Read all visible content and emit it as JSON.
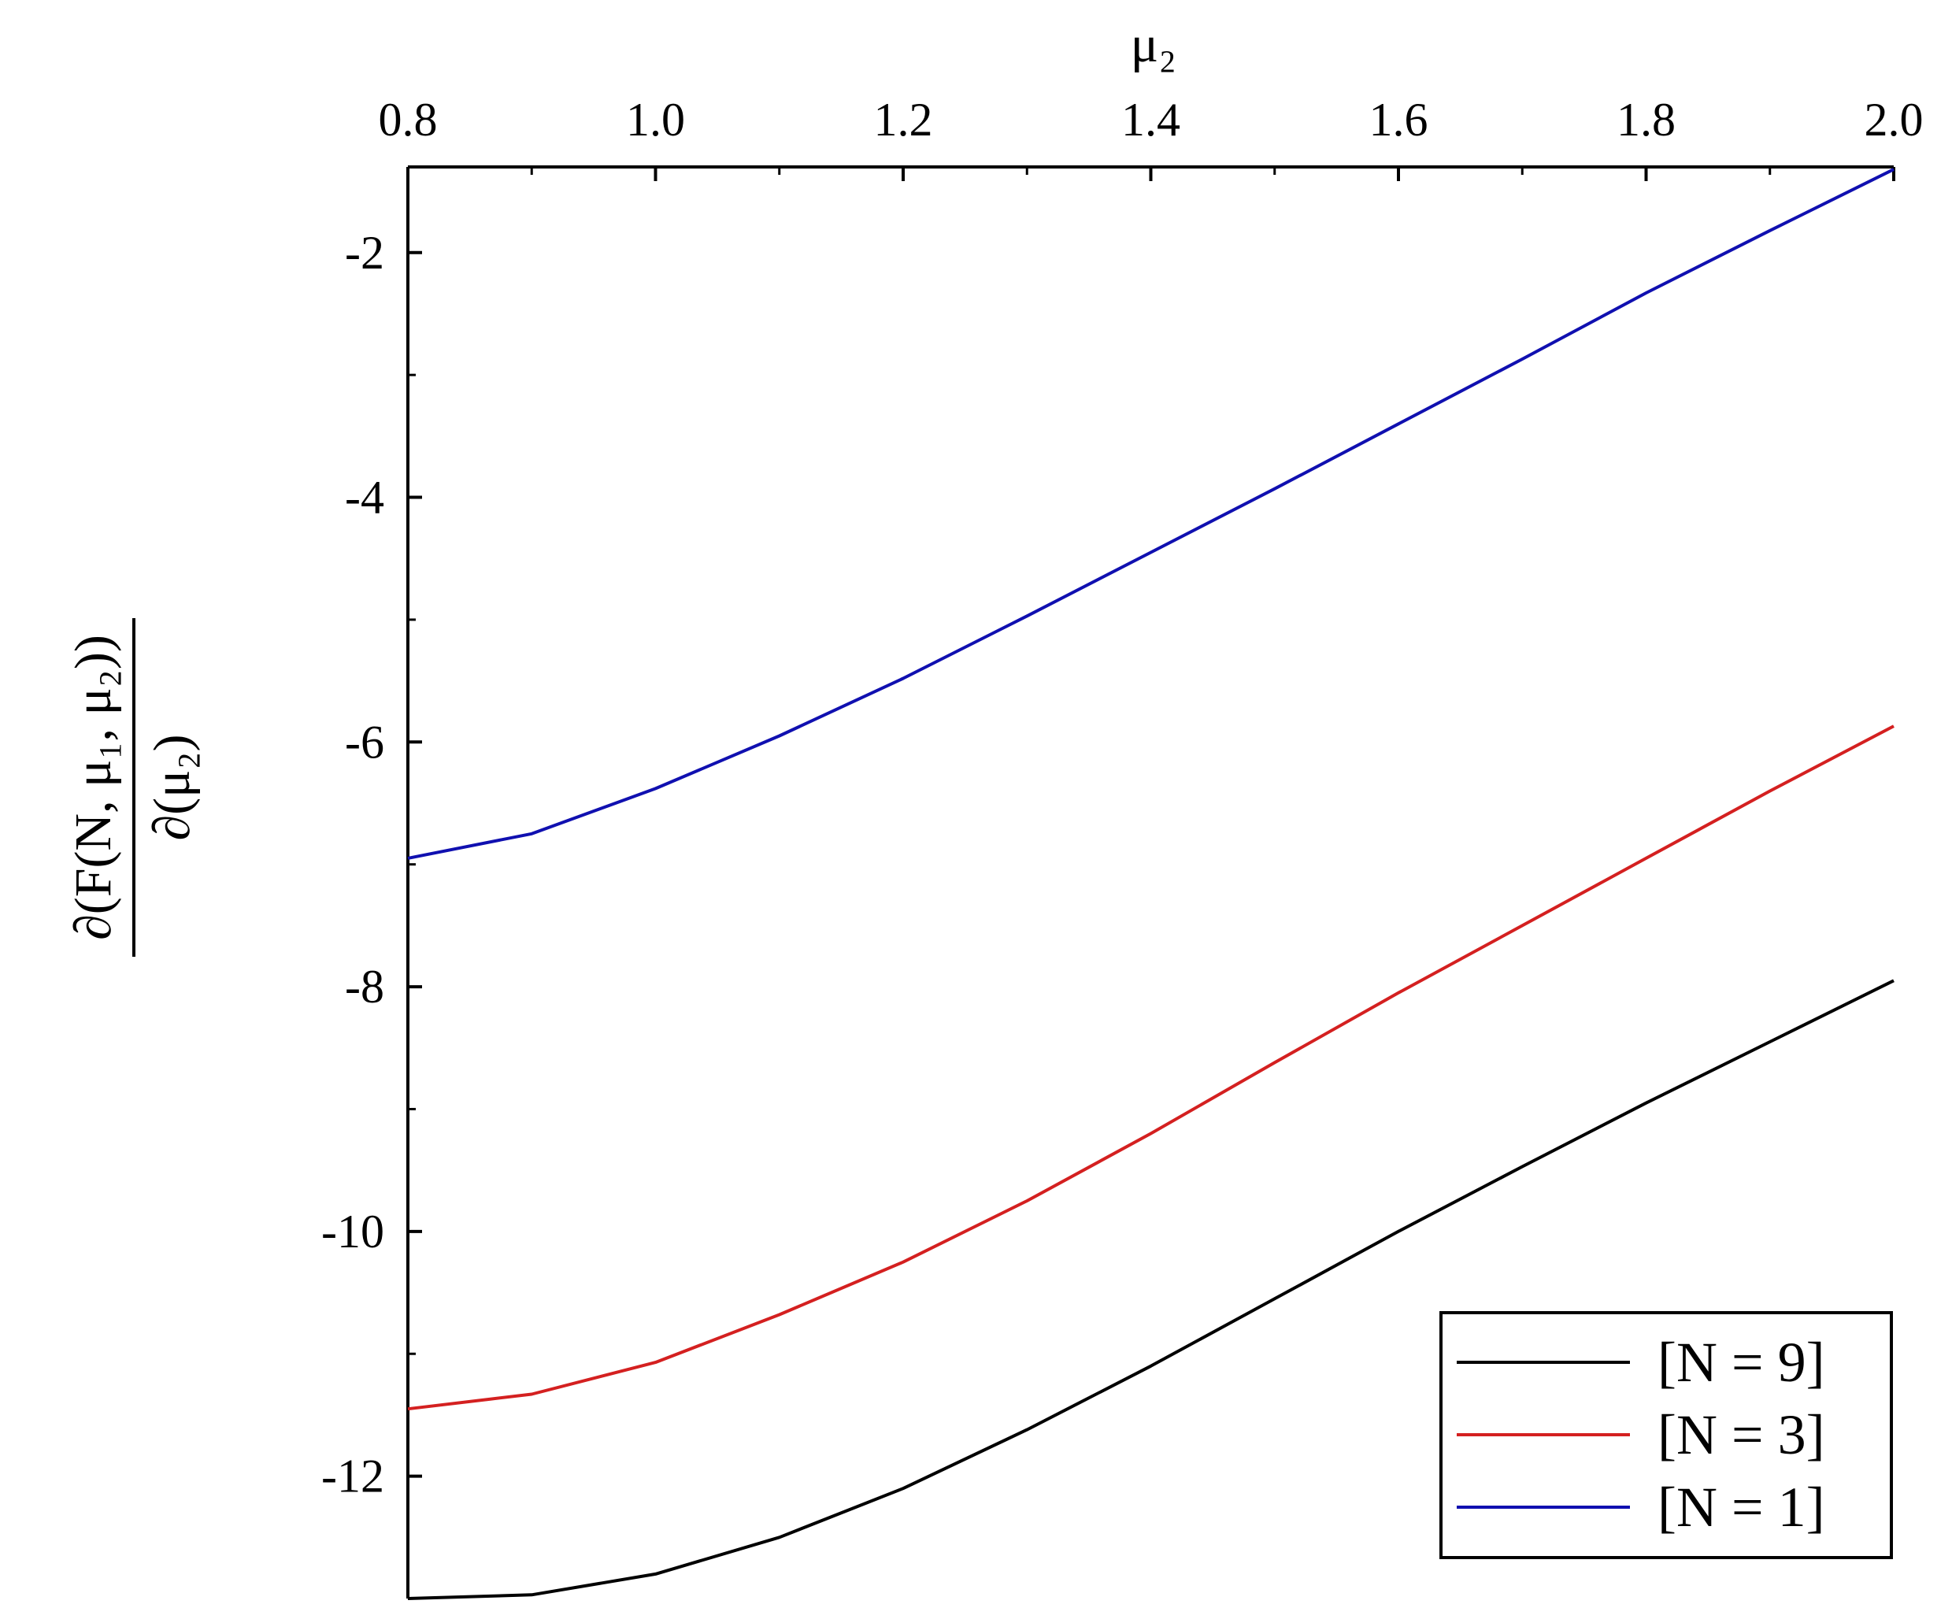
{
  "chart_data": {
    "type": "line",
    "title": "",
    "xlabel": "μ₂",
    "ylabel": {
      "numerator": "∂(F(N, μ₁, μ₂))",
      "denominator": "∂(μ₂)"
    },
    "xlim": [
      0.8,
      2.0
    ],
    "ylim": [
      -13.0,
      -1.3
    ],
    "x_ticks": [
      "0.8",
      "1.0",
      "1.2",
      "1.4",
      "1.6",
      "1.8",
      "2.0"
    ],
    "x_tick_values": [
      0.8,
      1.0,
      1.2,
      1.4,
      1.6,
      1.8,
      2.0
    ],
    "y_ticks": [
      "-2",
      "-4",
      "-6",
      "-8",
      "-10",
      "-12"
    ],
    "y_tick_values": [
      -2,
      -4,
      -6,
      -8,
      -10,
      -12
    ],
    "x_axis_position": "top",
    "grid": false,
    "legend_position": "bottom-right",
    "x": [
      0.8,
      0.9,
      1.0,
      1.1,
      1.2,
      1.3,
      1.4,
      1.5,
      1.6,
      1.7,
      1.8,
      1.9,
      2.0
    ],
    "series": [
      {
        "name": "[N = 9]",
        "color": "#000000",
        "values": [
          -13.0,
          -12.97,
          -12.8,
          -12.5,
          -12.1,
          -11.62,
          -11.1,
          -10.55,
          -10.0,
          -9.47,
          -8.95,
          -8.45,
          -7.95
        ]
      },
      {
        "name": "[N = 3]",
        "color": "#d42020",
        "values": [
          -11.45,
          -11.33,
          -11.07,
          -10.68,
          -10.25,
          -9.75,
          -9.2,
          -8.62,
          -8.05,
          -7.5,
          -6.95,
          -6.4,
          -5.87
        ]
      },
      {
        "name": "[N = 1]",
        "color": "#1010b0",
        "values": [
          -6.95,
          -6.75,
          -6.38,
          -5.95,
          -5.48,
          -4.97,
          -4.45,
          -3.93,
          -3.4,
          -2.87,
          -2.33,
          -1.82,
          -1.32
        ]
      }
    ]
  }
}
